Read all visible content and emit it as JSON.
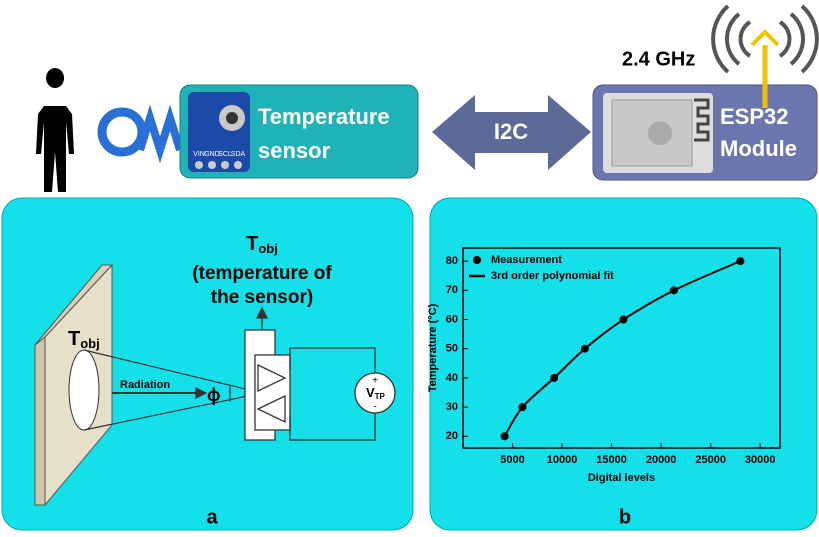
{
  "top": {
    "frequency": "2.4 GHz",
    "sensor_label": [
      "Temperature",
      "sensor"
    ],
    "pins": [
      "VIN",
      "GND",
      "SCL",
      "SDA"
    ],
    "bus": "I2C",
    "module_label": [
      "ESP32",
      "Module"
    ]
  },
  "panel_a": {
    "label": "a",
    "title_symbol": {
      "base": "T",
      "sub": "obj"
    },
    "title_lines": [
      "(temperature of",
      "the sensor)"
    ],
    "object_symbol": {
      "base": "T",
      "sub": "obj"
    },
    "radiation": "Radiation",
    "angle": "ϕ",
    "voltage": {
      "base": "V",
      "sub": "TP"
    },
    "plus": "+",
    "minus": "-"
  },
  "panel_b": {
    "label": "b",
    "chart_data": {
      "type": "scatter",
      "xlabel": "Digital levels",
      "ylabel": "Temperature (°C)",
      "xlim": [
        0,
        32000
      ],
      "ylim": [
        16,
        84.5
      ],
      "xticks": [
        5000,
        10000,
        15000,
        20000,
        25000,
        30000
      ],
      "yticks": [
        20,
        30,
        40,
        50,
        60,
        70,
        80
      ],
      "legend": "upper left",
      "series": [
        {
          "name": "Measurement",
          "color": "#000000",
          "mode": "markers",
          "x": [
            4200,
            6000,
            9200,
            12300,
            16200,
            21300,
            28000
          ],
          "values": [
            20,
            30,
            40,
            50,
            60,
            70,
            80
          ]
        },
        {
          "name": "3rd order polynomial fit",
          "color": "#000000",
          "mode": "line",
          "x": [
            4200,
            6000,
            9200,
            12300,
            16200,
            21300,
            28000
          ],
          "values": [
            20,
            30,
            40,
            50,
            60,
            70,
            80
          ]
        }
      ]
    }
  }
}
